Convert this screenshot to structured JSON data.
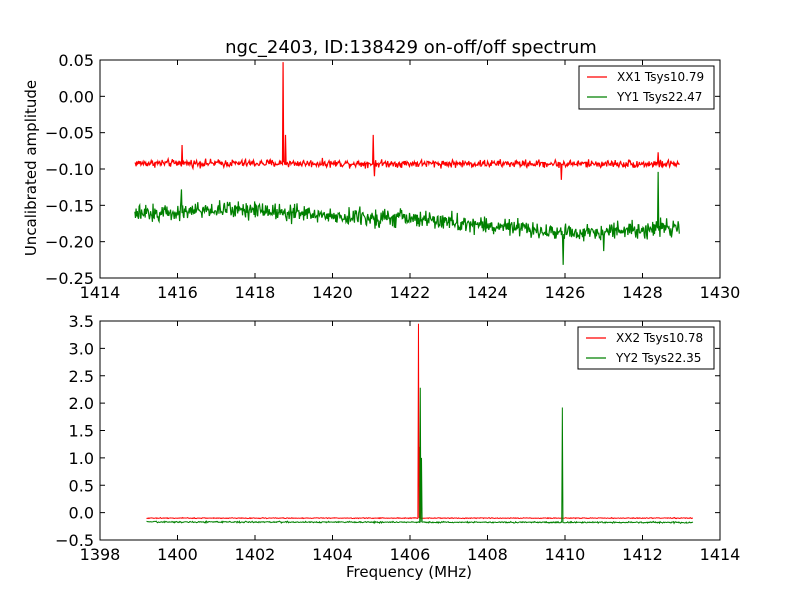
{
  "figure": {
    "title": "ngc_2403, ID:138429 on-off/off spectrum",
    "ylabel": "Uncalibrated amplitude",
    "xlabel": "Frequency (MHz)"
  },
  "chart_data": [
    {
      "type": "line",
      "title": "ngc_2403, ID:138429 on-off/off spectrum",
      "ylabel": "Uncalibrated amplitude",
      "xlabel": "",
      "xlim": [
        1414,
        1430
      ],
      "ylim": [
        -0.25,
        0.05
      ],
      "xticks": [
        1414,
        1416,
        1418,
        1420,
        1422,
        1424,
        1426,
        1428,
        1430
      ],
      "yticks": [
        -0.25,
        -0.2,
        -0.15,
        -0.1,
        -0.05,
        0.0,
        0.05
      ],
      "ytick_labels": [
        "−0.25",
        "−0.20",
        "−0.15",
        "−0.10",
        "−0.05",
        "0.00",
        "0.05"
      ],
      "grid": false,
      "legend_position": "top-right",
      "series": [
        {
          "name": "XX1 Tsys10.79",
          "color": "#ff0000",
          "x_range": [
            1414.9,
            1428.95
          ],
          "baseline": [
            [
              1414.9,
              -0.092
            ],
            [
              1428.95,
              -0.093
            ]
          ],
          "noise": 0.004,
          "spikes": [
            [
              1416.12,
              -0.067
            ],
            [
              1418.72,
              0.047
            ],
            [
              1418.78,
              -0.053
            ],
            [
              1421.05,
              -0.053
            ],
            [
              1421.08,
              -0.11
            ],
            [
              1425.9,
              -0.115
            ],
            [
              1428.4,
              -0.077
            ]
          ]
        },
        {
          "name": "YY1 Tsys22.47",
          "color": "#008000",
          "x_range": [
            1414.9,
            1428.95
          ],
          "baseline": [
            [
              1414.9,
              -0.163
            ],
            [
              1416.5,
              -0.157
            ],
            [
              1418.0,
              -0.155
            ],
            [
              1420.0,
              -0.165
            ],
            [
              1422.0,
              -0.168
            ],
            [
              1424.0,
              -0.178
            ],
            [
              1426.0,
              -0.188
            ],
            [
              1428.95,
              -0.18
            ]
          ],
          "noise": 0.009,
          "spikes": [
            [
              1416.1,
              -0.128
            ],
            [
              1425.95,
              -0.232
            ],
            [
              1428.4,
              -0.104
            ],
            [
              1427.0,
              -0.213
            ]
          ]
        }
      ]
    },
    {
      "type": "line",
      "title": "",
      "ylabel": "",
      "xlabel": "Frequency (MHz)",
      "xlim": [
        1398,
        1414
      ],
      "ylim": [
        -0.5,
        3.5
      ],
      "xticks": [
        1398,
        1400,
        1402,
        1404,
        1406,
        1408,
        1410,
        1412,
        1414
      ],
      "yticks": [
        -0.5,
        0.0,
        0.5,
        1.0,
        1.5,
        2.0,
        2.5,
        3.0,
        3.5
      ],
      "ytick_labels": [
        "−0.5",
        "0.0",
        "0.5",
        "1.0",
        "1.5",
        "2.0",
        "2.5",
        "3.0",
        "3.5"
      ],
      "grid": false,
      "legend_position": "top-right",
      "series": [
        {
          "name": "XX2 Tsys10.78",
          "color": "#ff0000",
          "x_range": [
            1399.2,
            1413.3
          ],
          "baseline": [
            [
              1399.2,
              -0.1
            ],
            [
              1413.3,
              -0.1
            ]
          ],
          "noise": 0.006,
          "spikes": [
            [
              1406.22,
              3.45
            ],
            [
              1406.25,
              1.2
            ]
          ]
        },
        {
          "name": "YY2 Tsys22.35",
          "color": "#008000",
          "x_range": [
            1399.2,
            1413.3
          ],
          "baseline": [
            [
              1399.2,
              -0.17
            ],
            [
              1413.3,
              -0.18
            ]
          ],
          "noise": 0.01,
          "spikes": [
            [
              1406.27,
              2.28
            ],
            [
              1406.3,
              1.0
            ],
            [
              1409.93,
              1.92
            ]
          ]
        }
      ]
    }
  ]
}
